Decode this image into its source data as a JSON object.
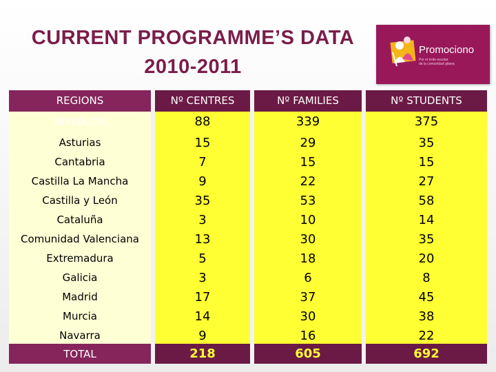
{
  "title": {
    "line1": "CURRENT PROGRAMME’S DATA",
    "line2": "2010-2011"
  },
  "logo": {
    "name": "Promociono",
    "tagline1": "Por el éxito escolar",
    "tagline2": "de la comunidad gitana"
  },
  "table": {
    "headers": [
      "REGIONS",
      "Nº CENTRES",
      "Nº FAMILIES",
      "Nº STUDENTS"
    ],
    "rows": [
      {
        "region": "Andalucía",
        "centres": "88",
        "families": "339",
        "students": "375"
      },
      {
        "region": "Asturias",
        "centres": "15",
        "families": "29",
        "students": "35"
      },
      {
        "region": "Cantabria",
        "centres": "7",
        "families": "15",
        "students": "15"
      },
      {
        "region": "Castilla La Mancha",
        "centres": "9",
        "families": "22",
        "students": "27"
      },
      {
        "region": "Castilla y León",
        "centres": "35",
        "families": "53",
        "students": "58"
      },
      {
        "region": "Cataluña",
        "centres": "3",
        "families": "10",
        "students": "14"
      },
      {
        "region": "Comunidad Valenciana",
        "centres": "13",
        "families": "30",
        "students": "35"
      },
      {
        "region": "Extremadura",
        "centres": "5",
        "families": "18",
        "students": "20"
      },
      {
        "region": "Galicia",
        "centres": "3",
        "families": "6",
        "students": "8"
      },
      {
        "region": "Madrid",
        "centres": "17",
        "families": "37",
        "students": "45"
      },
      {
        "region": "Murcia",
        "centres": "14",
        "families": "30",
        "students": "38"
      },
      {
        "region": "Navarra",
        "centres": "9",
        "families": "16",
        "students": "22"
      }
    ],
    "total": {
      "region": "TOTAL",
      "centres": "218",
      "families": "605",
      "students": "692"
    }
  },
  "colors": {
    "title": "#7a1d4a",
    "header_band": "#6b1a45",
    "cell_yellow": "#ffff33",
    "region_cell": "#ffffd6",
    "logo_bg": "#99185a"
  }
}
